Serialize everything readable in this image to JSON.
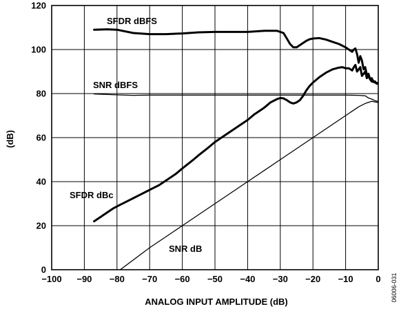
{
  "chart_data": {
    "type": "line",
    "title": "",
    "xlabel": "ANALOG INPUT AMPLITUDE (dB)",
    "ylabel": "(dB)",
    "xlim": [
      -100,
      0
    ],
    "ylim": [
      0,
      120
    ],
    "xticks": [
      "−100",
      "−90",
      "−80",
      "−70",
      "−60",
      "−50",
      "−40",
      "−30",
      "−20",
      "−10",
      "0"
    ],
    "yticks": [
      "0",
      "20",
      "40",
      "60",
      "80",
      "100",
      "120"
    ],
    "grid": true,
    "figure_id": "06006-031",
    "series": [
      {
        "name": "SFDR dBFS",
        "stroke": "bold",
        "x": [
          -87,
          -83,
          -80,
          -75,
          -70,
          -65,
          -60,
          -55,
          -50,
          -45,
          -40,
          -35,
          -31,
          -29,
          -28,
          -27,
          -26,
          -25,
          -24,
          -23,
          -22,
          -21,
          -20,
          -18,
          -16,
          -14,
          -12,
          -10,
          -9,
          -8,
          -7.5,
          -7,
          -6.5,
          -6,
          -5.5,
          -5,
          -4.5,
          -4,
          -3.5,
          -3,
          -2.5,
          -2,
          -1.5,
          -1,
          -0.5,
          -0.2
        ],
        "y": [
          109,
          109.2,
          109,
          107.5,
          107,
          107,
          107.3,
          107.8,
          108,
          108,
          108,
          108.5,
          108.5,
          107.5,
          105,
          102.5,
          101,
          101,
          102,
          103,
          104,
          104.7,
          105,
          105.2,
          104.5,
          103.5,
          102.5,
          101,
          100,
          99,
          100,
          100.5,
          98,
          94,
          97,
          95,
          91,
          92,
          88.5,
          89,
          86.5,
          87,
          85.5,
          85.5,
          84.5,
          84.5
        ]
      },
      {
        "name": "SNR dBFS",
        "stroke": "thin",
        "x": [
          -87,
          -80,
          -75,
          -70,
          -60,
          -50,
          -40,
          -30,
          -20,
          -10,
          -6,
          -4,
          -3,
          -2,
          -1,
          -0.2
        ],
        "y": [
          79.8,
          79.4,
          79.2,
          79.3,
          79.3,
          79.3,
          79.3,
          79.3,
          79.3,
          79.3,
          79.2,
          79,
          78,
          77.5,
          76.8,
          76.5
        ]
      },
      {
        "name": "SFDR dBc",
        "stroke": "bold",
        "x": [
          -87,
          -85,
          -83,
          -81,
          -79,
          -77,
          -75,
          -73,
          -71,
          -69,
          -67,
          -65,
          -62,
          -60,
          -57,
          -55,
          -52,
          -50,
          -47,
          -45,
          -42,
          -40,
          -38,
          -35,
          -33,
          -31,
          -30,
          -29,
          -28,
          -27,
          -26,
          -25,
          -24,
          -23,
          -22,
          -21,
          -20,
          -18,
          -16,
          -14,
          -12,
          -11,
          -10,
          -9,
          -8,
          -7.5,
          -7,
          -6.5,
          -6,
          -5.5,
          -5,
          -4.5,
          -4,
          -3.5,
          -3,
          -2.5,
          -2,
          -1.5,
          -1,
          -0.5,
          -0.2
        ],
        "y": [
          22,
          24,
          26,
          28,
          29.5,
          31,
          32.5,
          34,
          35.5,
          37,
          38.5,
          40.5,
          43.5,
          46,
          49.5,
          52,
          55.5,
          58,
          61,
          63,
          66,
          68,
          70.5,
          73.5,
          76,
          77.5,
          78,
          77.8,
          77,
          76,
          75.5,
          76,
          77,
          79,
          81.5,
          83.5,
          85,
          87.5,
          89.5,
          91,
          91.8,
          92,
          91.5,
          91.5,
          90.5,
          92,
          93,
          90,
          91,
          92,
          88,
          89,
          90,
          87,
          88,
          86.5,
          85.5,
          85.3,
          85,
          84.8,
          84.8
        ]
      },
      {
        "name": "SNR dB",
        "stroke": "thin",
        "x": [
          -79,
          -70,
          -60,
          -50,
          -40,
          -30,
          -20,
          -10,
          -6,
          -4,
          -2,
          -0.2
        ],
        "y": [
          0,
          10,
          20,
          30,
          40,
          50,
          60,
          70,
          74,
          75.5,
          76.5,
          76
        ]
      }
    ]
  }
}
